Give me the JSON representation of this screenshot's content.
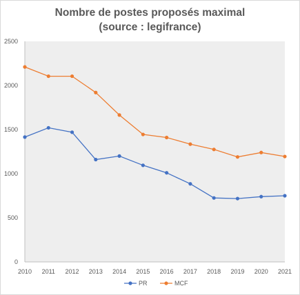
{
  "chart_data": {
    "type": "line",
    "title_line1": "Nombre de postes proposés maximal",
    "title_line2": "(source : legifrance)",
    "categories": [
      "2010",
      "2011",
      "2012",
      "2013",
      "2014",
      "2015",
      "2016",
      "2017",
      "2018",
      "2019",
      "2020",
      "2021"
    ],
    "yticks": [
      "0",
      "500",
      "1000",
      "1500",
      "2000",
      "2500"
    ],
    "ylim": [
      0,
      2500
    ],
    "grid": "plot area shaded, no gridlines",
    "legend_position": "bottom",
    "series": [
      {
        "name": "PR",
        "color": "#4472c4",
        "values": [
          1415,
          1520,
          1470,
          1160,
          1200,
          1095,
          1010,
          885,
          725,
          718,
          740,
          750
        ]
      },
      {
        "name": "MCF",
        "color": "#ed7d31",
        "values": [
          2210,
          2105,
          2105,
          1920,
          1665,
          1445,
          1410,
          1335,
          1275,
          1190,
          1240,
          1195
        ]
      }
    ]
  }
}
